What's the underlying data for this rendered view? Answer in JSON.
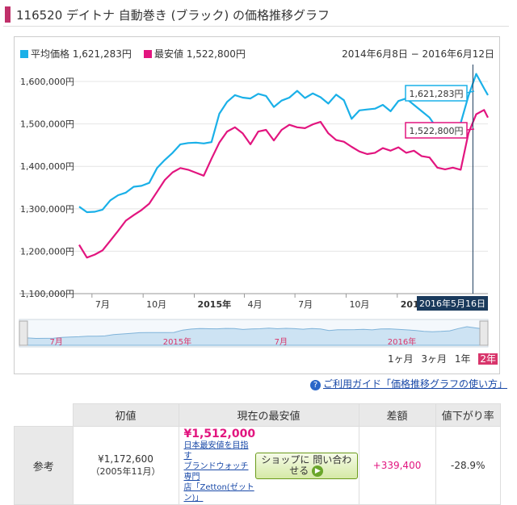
{
  "page": {
    "title": "116520 デイトナ 自動巻き (ブラック) の価格推移グラフ",
    "help_link": "ご利用ガイド「価格推移グラフの使い方」",
    "range_buttons": [
      "1ヶ月",
      "3ヶ月",
      "1年",
      "2年"
    ],
    "range_active": "2年",
    "colors": {
      "avg": "#1ab0e8",
      "min": "#e2157f",
      "brand": "#c0306a"
    }
  },
  "legend": {
    "avg": "平均価格 1,621,283円",
    "min": "最安値 1,522,800円",
    "date_range": "2014年6月8日 − 2016年6月12日"
  },
  "callouts": {
    "avg": "1,621,283円",
    "min": "1,522,800円",
    "date": "2016年5月16日"
  },
  "chart_data": {
    "type": "line",
    "ylim": [
      1100000,
      1640000
    ],
    "yticks": [
      1100000,
      1200000,
      1300000,
      1400000,
      1500000,
      1600000
    ],
    "ytick_labels": [
      "1,100,000円",
      "1,200,000円",
      "1,300,000円",
      "1,400,000円",
      "1,500,000円",
      "1,600,000円"
    ],
    "xlim": [
      "2014-06-08",
      "2016-06-12"
    ],
    "xticks": [
      "2014-07-01",
      "2014-10-01",
      "2015-01-01",
      "2015-04-01",
      "2015-07-01",
      "2015-10-01",
      "2016-01-01"
    ],
    "xtick_labels": [
      "7月",
      "10月",
      "2015年",
      "4月",
      "7月",
      "10月",
      "2016年"
    ],
    "navigator_labels": [
      "7月",
      "2015年",
      "7月",
      "2016年"
    ],
    "x": [
      "2014-06-08",
      "2014-06-22",
      "2014-07-06",
      "2014-07-20",
      "2014-08-03",
      "2014-08-17",
      "2014-08-31",
      "2014-09-14",
      "2014-09-28",
      "2014-10-12",
      "2014-10-26",
      "2014-11-09",
      "2014-11-23",
      "2014-12-07",
      "2014-12-21",
      "2015-01-04",
      "2015-01-18",
      "2015-02-01",
      "2015-02-15",
      "2015-03-01",
      "2015-03-15",
      "2015-03-29",
      "2015-04-12",
      "2015-04-26",
      "2015-05-10",
      "2015-05-24",
      "2015-06-07",
      "2015-06-21",
      "2015-07-05",
      "2015-07-19",
      "2015-08-02",
      "2015-08-16",
      "2015-08-30",
      "2015-09-13",
      "2015-09-27",
      "2015-10-11",
      "2015-10-25",
      "2015-11-08",
      "2015-11-22",
      "2015-12-06",
      "2015-12-20",
      "2016-01-03",
      "2016-01-17",
      "2016-01-31",
      "2016-02-14",
      "2016-02-28",
      "2016-03-13",
      "2016-03-27",
      "2016-04-10",
      "2016-04-24",
      "2016-05-08",
      "2016-05-22",
      "2016-06-05",
      "2016-06-12"
    ],
    "series": [
      {
        "name": "平均価格",
        "color": "#1ab0e8",
        "values": [
          1305000,
          1292000,
          1293000,
          1298000,
          1320000,
          1332000,
          1338000,
          1352000,
          1354000,
          1361000,
          1396000,
          1415000,
          1432000,
          1452000,
          1455000,
          1456000,
          1454000,
          1457000,
          1524000,
          1552000,
          1568000,
          1562000,
          1560000,
          1571000,
          1566000,
          1540000,
          1555000,
          1562000,
          1578000,
          1561000,
          1572000,
          1563000,
          1548000,
          1569000,
          1556000,
          1512000,
          1532000,
          1534000,
          1536000,
          1545000,
          1530000,
          1554000,
          1560000,
          1545000,
          1530000,
          1515000,
          1488000,
          1478000,
          1486000,
          1502000,
          1566000,
          1618000,
          1584000,
          1568000
        ]
      },
      {
        "name": "最安値",
        "color": "#e2157f",
        "values": [
          1215000,
          1185000,
          1192000,
          1202000,
          1225000,
          1248000,
          1272000,
          1285000,
          1297000,
          1312000,
          1340000,
          1368000,
          1386000,
          1396000,
          1392000,
          1385000,
          1378000,
          1418000,
          1456000,
          1482000,
          1492000,
          1478000,
          1452000,
          1482000,
          1486000,
          1461000,
          1486000,
          1498000,
          1492000,
          1490000,
          1499000,
          1505000,
          1478000,
          1462000,
          1458000,
          1446000,
          1435000,
          1429000,
          1432000,
          1443000,
          1437000,
          1445000,
          1432000,
          1437000,
          1424000,
          1421000,
          1397000,
          1393000,
          1397000,
          1392000,
          1478000,
          1522800,
          1533000,
          1515000
        ]
      }
    ]
  },
  "reference_table": {
    "headers": [
      "初値",
      "現在の最安値",
      "差額",
      "値下がり率"
    ],
    "row_label": "参考",
    "initial_price": "¥1,172,600",
    "initial_date": "（2005年11月）",
    "current_min_price": "¥1,512,000",
    "shop_line1": "日本最安値を目指す",
    "shop_line2": "ブランドウォッチ専門",
    "shop_line3": "店「Zetton(ゼットン)」",
    "contact_button": "ショップに 問い合わせる",
    "difference": "+339,400",
    "decline_rate": "-28.9%"
  }
}
